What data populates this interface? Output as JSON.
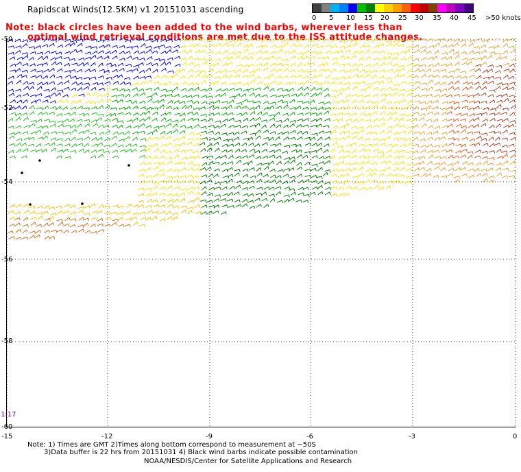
{
  "header": {
    "title": "Rapidscat Winds(12.5KM) v1 20151031 ascending",
    "note_line1": "Note: black circles have been added to the wind barbs, wherever less than",
    "note_line2": "optimal wind retrieval conditions are met due to the ISS attitude changes."
  },
  "legend": {
    "colors": [
      "#404040",
      "#808080",
      "#00b0f0",
      "#0080ff",
      "#0000ff",
      "#00c000",
      "#008000",
      "#ffff00",
      "#ffd000",
      "#ffa000",
      "#ff6000",
      "#ff0000",
      "#c00000",
      "#804000",
      "#ff00ff",
      "#c000c0",
      "#8000c0",
      "#400080"
    ],
    "labels": [
      "0",
      "5",
      "10",
      "15",
      "20",
      "25",
      "30",
      "35",
      "40",
      "45",
      ">50 knots"
    ]
  },
  "axes": {
    "lat_labels": [
      "-50",
      "-52",
      "-54",
      "-56",
      "-58",
      "-60"
    ],
    "lon_labels": [
      "-15",
      "-12",
      "-9",
      "-6",
      "-3",
      "0"
    ]
  },
  "time_label": "1:17",
  "footer": {
    "line1": "Note: 1) Times are GMT 2)Times along bottom correspond to measurement at ~50S",
    "line2": "3)Data buffer is 22 hrs from 20151031 4) Black wind barbs indicate possible contamination",
    "line3": "NOAA/NESDIS/Center for Satellite Applications and Research"
  }
}
